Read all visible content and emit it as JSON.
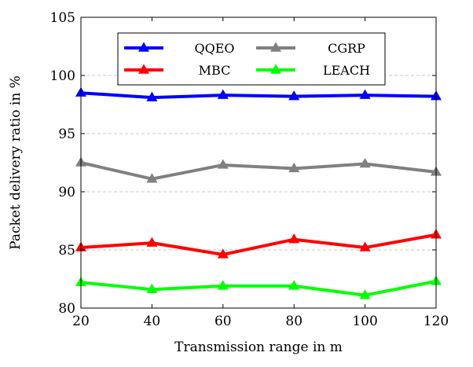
{
  "chart_data": {
    "type": "line",
    "title": "",
    "xlabel": "Transmission range in m",
    "ylabel": "Packet delivery ratio in %",
    "x": [
      20,
      40,
      60,
      80,
      100,
      120
    ],
    "xlim": [
      20,
      120
    ],
    "ylim": [
      80,
      105
    ],
    "xticks": [
      "20",
      "40",
      "60",
      "80",
      "100",
      "120"
    ],
    "yticks": [
      "80",
      "85",
      "90",
      "95",
      "100",
      "105"
    ],
    "grid": "horizontal-dashed",
    "legend_position": "top-center",
    "legend_columns": 2,
    "series": [
      {
        "name": "QQEO",
        "color": "#0000ff",
        "values": [
          98.5,
          98.1,
          98.3,
          98.2,
          98.3,
          98.2
        ]
      },
      {
        "name": "CGRP",
        "color": "#808080",
        "values": [
          92.5,
          91.1,
          92.3,
          92.0,
          92.4,
          91.7
        ]
      },
      {
        "name": "MBC",
        "color": "#ff0000",
        "values": [
          85.2,
          85.6,
          84.6,
          85.9,
          85.2,
          86.3
        ]
      },
      {
        "name": "LEACH",
        "color": "#00ff00",
        "values": [
          82.2,
          81.6,
          81.9,
          81.9,
          81.1,
          82.3
        ]
      }
    ]
  }
}
